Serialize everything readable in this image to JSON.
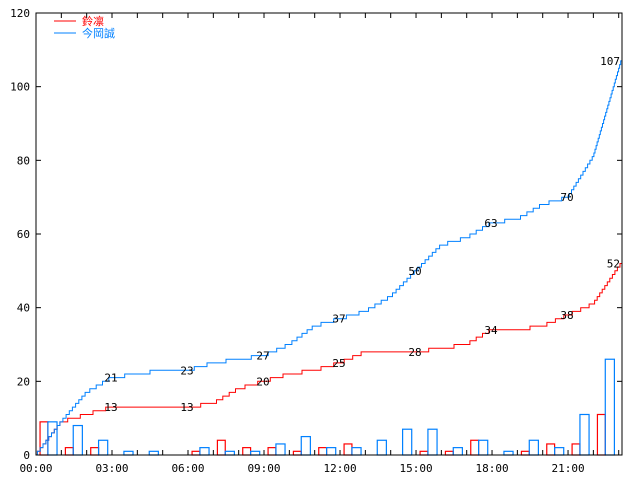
{
  "chart_data": {
    "type": "bar+line",
    "title": "",
    "xlabel": "",
    "ylabel": "",
    "ylim": [
      0,
      120
    ],
    "xlim_hours": [
      0,
      23.13
    ],
    "y_ticks": [
      "0",
      "20",
      "40",
      "60",
      "80",
      "100",
      "120"
    ],
    "y_tick_values": [
      0,
      20,
      40,
      60,
      80,
      100,
      120
    ],
    "x_ticks": [
      "00:00",
      "03:00",
      "06:00",
      "09:00",
      "12:00",
      "15:00",
      "18:00",
      "21:00"
    ],
    "x_tick_hours": [
      0,
      3,
      6,
      9,
      12,
      15,
      18,
      21
    ],
    "legend_position": "top-left",
    "hours": [
      0,
      1,
      2,
      3,
      4,
      5,
      6,
      7,
      8,
      9,
      10,
      11,
      12,
      13,
      14,
      15,
      16,
      17,
      18,
      19,
      20,
      21,
      22
    ],
    "series": [
      {
        "name": "鈴凛",
        "color": "#ff0000",
        "hourly_counts": [
          9,
          2,
          2,
          0,
          0,
          0,
          1,
          4,
          2,
          2,
          1,
          2,
          3,
          0,
          0,
          1,
          1,
          4,
          0,
          1,
          3,
          3,
          11
        ],
        "cumulative_labels": [
          {
            "hour": 3,
            "value": 13
          },
          {
            "hour": 6,
            "value": 13
          },
          {
            "hour": 9,
            "value": 20
          },
          {
            "hour": 12,
            "value": 25
          },
          {
            "hour": 15,
            "value": 28
          },
          {
            "hour": 18,
            "value": 34
          },
          {
            "hour": 21,
            "value": 38
          },
          {
            "hour": 23.13,
            "value": 52
          }
        ]
      },
      {
        "name": "今岡誠",
        "color": "#0080ff",
        "hourly_counts": [
          9,
          8,
          4,
          1,
          1,
          0,
          2,
          1,
          1,
          3,
          5,
          2,
          2,
          4,
          7,
          7,
          2,
          4,
          1,
          4,
          2,
          11,
          26
        ],
        "cumulative_labels": [
          {
            "hour": 3,
            "value": 21
          },
          {
            "hour": 6,
            "value": 23
          },
          {
            "hour": 9,
            "value": 27
          },
          {
            "hour": 12,
            "value": 37
          },
          {
            "hour": 15,
            "value": 50
          },
          {
            "hour": 18,
            "value": 63
          },
          {
            "hour": 21,
            "value": 70
          },
          {
            "hour": 23.13,
            "value": 107
          }
        ]
      }
    ]
  }
}
